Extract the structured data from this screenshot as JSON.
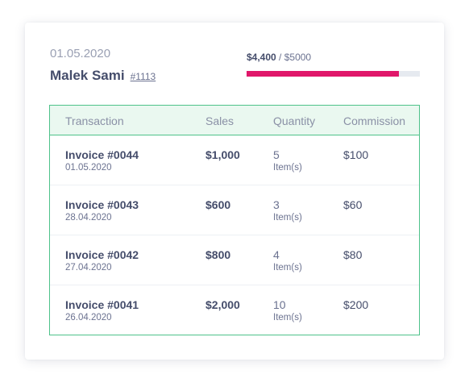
{
  "header": {
    "date": "01.05.2020",
    "name": "Malek Sami",
    "id": "#1113"
  },
  "progress": {
    "current_label": "$4,400",
    "separator": "/",
    "target_label": "$5000",
    "fraction": 0.88,
    "color": "#e0176a"
  },
  "table": {
    "columns": [
      "Transaction",
      "Sales",
      "Quantity",
      "Commission"
    ],
    "rows": [
      {
        "invoice": "Invoice #0044",
        "date": "01.05.2020",
        "sales": "$1,000",
        "quantity": "5",
        "unit": "Item(s)",
        "commission": "$100"
      },
      {
        "invoice": "Invoice #0043",
        "date": "28.04.2020",
        "sales": "$600",
        "quantity": "3",
        "unit": "Item(s)",
        "commission": "$60"
      },
      {
        "invoice": "Invoice #0042",
        "date": "27.04.2020",
        "sales": "$800",
        "quantity": "4",
        "unit": "Item(s)",
        "commission": "$80"
      },
      {
        "invoice": "Invoice #0041",
        "date": "26.04.2020",
        "sales": "$2,000",
        "quantity": "10",
        "unit": "Item(s)",
        "commission": "$200"
      }
    ]
  },
  "colors": {
    "accent_green": "#4ec28a",
    "header_bg": "#eaf8f0",
    "text_dark": "#454d6b"
  }
}
